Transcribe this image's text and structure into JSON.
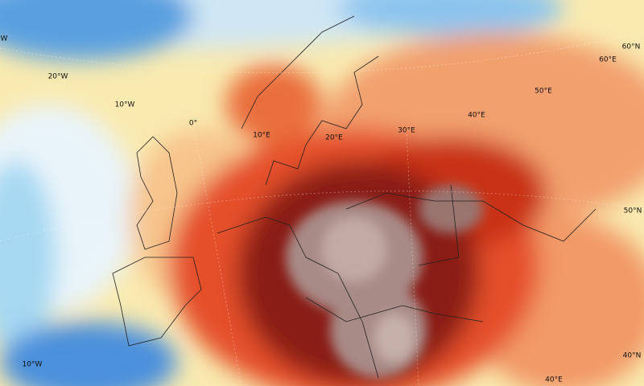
{
  "map": {
    "graticule_labels": [
      "W",
      "20°W",
      "10°W",
      "0°",
      "10°E",
      "20°E",
      "30°E",
      "40°E",
      "50°E",
      "60°E",
      "60°N",
      "50°N",
      "40°N",
      "40°E",
      "10°W"
    ]
  }
}
